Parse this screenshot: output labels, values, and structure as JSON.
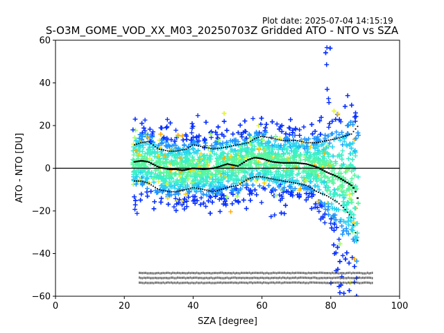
{
  "plot_date": "Plot date: 2025-07-04 14:15:19",
  "chart_data": {
    "type": "scatter",
    "title": "S-O3M_GOME_VOD_XX_M03_20250703Z Gridded ATO - NTO vs SZA",
    "xlabel": "SZA [degree]",
    "ylabel": "ATO - NTO [DU]",
    "xlim": [
      0,
      100
    ],
    "ylim": [
      -60,
      60
    ],
    "xticks": [
      "0",
      "20",
      "40",
      "60",
      "80",
      "100"
    ],
    "yticks": [
      "60",
      "40",
      "20",
      "0",
      "−20",
      "−40",
      "−60"
    ],
    "grid": false,
    "legend": "none",
    "zero_line": 0,
    "marker": "+",
    "colormap": [
      "#0a32ff",
      "#1e96ff",
      "#28d2f0",
      "#3cf0c8",
      "#5af5a0",
      "#a0ff64",
      "#e6f532",
      "#ffd200",
      "#ffaa00"
    ],
    "sza_range": [
      22.5,
      88
    ],
    "mean_curve": {
      "x": [
        23,
        25,
        27,
        30,
        33,
        35,
        37,
        40,
        43,
        46,
        50,
        53,
        56,
        58,
        60,
        63,
        66,
        70,
        73,
        76,
        79,
        82,
        84,
        86,
        87,
        88
      ],
      "y": [
        3,
        3.5,
        3,
        0.5,
        -0.5,
        -0.5,
        -1,
        0,
        -0.5,
        0,
        2,
        1,
        4,
        5,
        4.5,
        3,
        2.5,
        2.5,
        2,
        0.5,
        -2,
        -4,
        -6,
        -8,
        -10,
        -15
      ]
    },
    "upper_sigma": {
      "x": [
        23,
        25,
        27,
        30,
        33,
        35,
        38,
        40,
        43,
        46,
        50,
        53,
        56,
        58,
        60,
        63,
        66,
        70,
        73,
        76,
        79,
        82,
        84,
        86,
        88
      ],
      "y": [
        11,
        12,
        12.5,
        9,
        8,
        8,
        9,
        11,
        10,
        9,
        10,
        11,
        12,
        14,
        15,
        14,
        13,
        13,
        12,
        12,
        13,
        14,
        15,
        16,
        20
      ]
    },
    "lower_sigma": {
      "x": [
        23,
        25,
        27,
        30,
        33,
        35,
        38,
        40,
        43,
        46,
        50,
        53,
        56,
        58,
        60,
        63,
        66,
        70,
        73,
        76,
        79,
        82,
        84,
        86,
        88
      ],
      "y": [
        -6,
        -6,
        -7,
        -10,
        -11,
        -11,
        -10,
        -9,
        -10,
        -11,
        -9,
        -8,
        -5,
        -4,
        -4,
        -5,
        -6,
        -7,
        -8,
        -11,
        -13,
        -16,
        -19,
        -23,
        -35
      ]
    }
  }
}
